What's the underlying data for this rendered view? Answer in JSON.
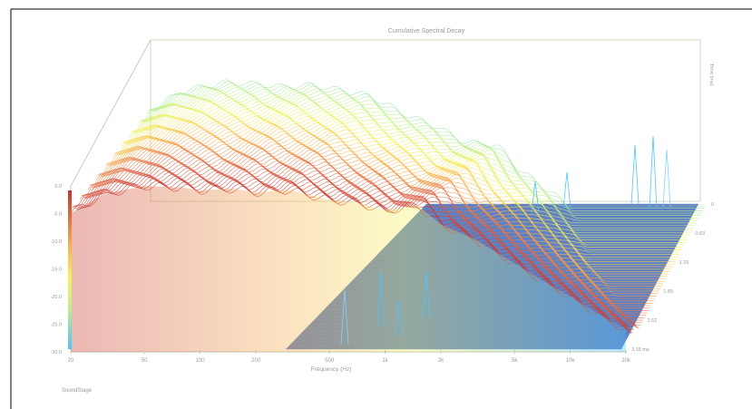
{
  "chart_data": {
    "type": "waterfall-3d",
    "title": "Cumulative Spectral Decay",
    "xlabel": "Frequency (Hz)",
    "ylabel": "",
    "zlabel": "Time (ms)",
    "footer": "SoundStage",
    "x_ticks": [
      "20",
      "50",
      "100",
      "200",
      "500",
      "1k",
      "2k",
      "5k",
      "10k",
      "20k"
    ],
    "y_ticks": [
      "0.0",
      "-5.0",
      "-10.0",
      "-15.0",
      "-20.0",
      "-25.0",
      "-30.0"
    ],
    "z_ticks": [
      "0",
      "0.63",
      "1.26",
      "1.89",
      "2.52",
      "3.15 ms"
    ],
    "xlim": [
      20,
      20000
    ],
    "ylim": [
      -30,
      0
    ],
    "zlim": [
      0,
      3.15
    ],
    "floor_color": "#5f7fc1",
    "colorscale": [
      "#4dc3ff",
      "#b9f08c",
      "#f6f25a",
      "#f8b24e",
      "#e36a46",
      "#c8342b"
    ],
    "ridge_profile": {
      "x": [
        20,
        30,
        50,
        80,
        100,
        150,
        200,
        300,
        500,
        700,
        1000,
        1500,
        2000,
        3000,
        5000,
        7000,
        10000,
        14000,
        20000
      ],
      "y": [
        -5,
        -1.5,
        0,
        -0.3,
        -0.8,
        -0.5,
        -1.2,
        -0.7,
        -2.5,
        -3,
        -4.5,
        -3.5,
        -7,
        -9.5,
        -14,
        -17,
        -20,
        -23,
        -26
      ]
    }
  }
}
